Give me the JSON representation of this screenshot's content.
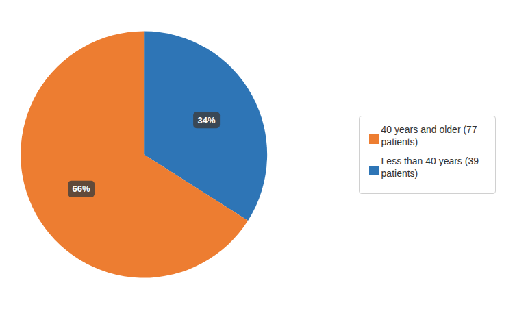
{
  "chart_data": {
    "type": "pie",
    "categories": [
      "Less than 40 years (39\n patients)",
      "40 years and older (77\n patients)"
    ],
    "values": [
      34,
      66
    ],
    "value_labels": [
      "34%",
      "66%"
    ],
    "colors": [
      "#2E75B6",
      "#ED7D31"
    ],
    "data_labels": true,
    "legend": "right"
  }
}
